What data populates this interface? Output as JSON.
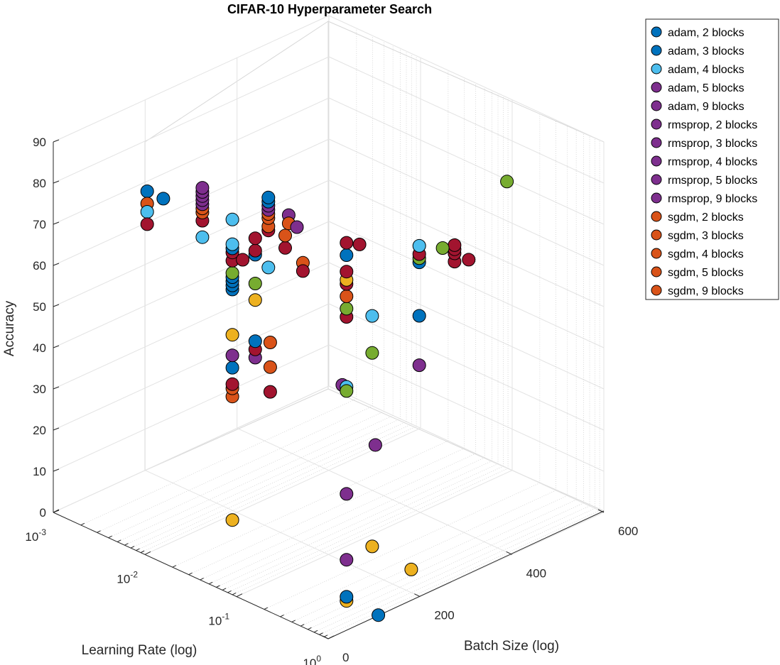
{
  "chart_data": {
    "type": "scatter",
    "title": "CIFAR-10 Hyperparameter Search",
    "xlabel": "Learning Rate (log)",
    "ylabel": "Batch Size (log)",
    "zlabel": "Accuracy",
    "x_scale": "log",
    "x_ticks": [
      {
        "value": 0.001,
        "base": "10",
        "exp": "-3"
      },
      {
        "value": 0.01,
        "base": "10",
        "exp": "-2"
      },
      {
        "value": 0.1,
        "base": "10",
        "exp": "-1"
      },
      {
        "value": 1,
        "base": "10",
        "exp": "0"
      }
    ],
    "y_ticks": [
      {
        "value": 0,
        "label": "0"
      },
      {
        "value": 200,
        "label": "200"
      },
      {
        "value": 400,
        "label": "400"
      },
      {
        "value": 600,
        "label": "600"
      }
    ],
    "z_ticks": [
      {
        "value": 0,
        "label": "0"
      },
      {
        "value": 10,
        "label": "10"
      },
      {
        "value": 20,
        "label": "20"
      },
      {
        "value": 30,
        "label": "30"
      },
      {
        "value": 40,
        "label": "40"
      },
      {
        "value": 50,
        "label": "50"
      },
      {
        "value": 60,
        "label": "60"
      },
      {
        "value": 70,
        "label": "70"
      },
      {
        "value": 80,
        "label": "80"
      },
      {
        "value": 90,
        "label": "90"
      }
    ],
    "xlim": [
      0.001,
      1
    ],
    "ylim": [
      0,
      600
    ],
    "zlim": [
      0,
      90
    ],
    "grid": true,
    "legend_position": "top-right outside",
    "legend": [
      {
        "label": "adam, 2 blocks",
        "color": "#0072BD"
      },
      {
        "label": "adam, 3 blocks",
        "color": "#0072BD"
      },
      {
        "label": "adam, 4 blocks",
        "color": "#4DBEEE"
      },
      {
        "label": "adam, 5 blocks",
        "color": "#7E2F8E"
      },
      {
        "label": "adam, 9 blocks",
        "color": "#7E2F8E"
      },
      {
        "label": "rmsprop, 2 blocks",
        "color": "#7E2F8E"
      },
      {
        "label": "rmsprop, 3 blocks",
        "color": "#7E2F8E"
      },
      {
        "label": "rmsprop, 4 blocks",
        "color": "#7E2F8E"
      },
      {
        "label": "rmsprop, 5 blocks",
        "color": "#7E2F8E"
      },
      {
        "label": "rmsprop, 9 blocks",
        "color": "#7E2F8E"
      },
      {
        "label": "sgdm, 2 blocks",
        "color": "#D95319"
      },
      {
        "label": "sgdm, 3 blocks",
        "color": "#D95319"
      },
      {
        "label": "sgdm, 4 blocks",
        "color": "#D95319"
      },
      {
        "label": "sgdm, 5 blocks",
        "color": "#D95319"
      },
      {
        "label": "sgdm, 9 blocks",
        "color": "#D95319"
      }
    ],
    "points": [
      {
        "x": 0.01,
        "y": 5,
        "z": 88,
        "color": "#0072BD"
      },
      {
        "x": 0.01,
        "y": 5,
        "z": 85,
        "color": "#D95319"
      },
      {
        "x": 0.01,
        "y": 5,
        "z": 83,
        "color": "#4DBEEE"
      },
      {
        "x": 0.01,
        "y": 5,
        "z": 80,
        "color": "#A2142F"
      },
      {
        "x": 0.015,
        "y": 5,
        "z": 88,
        "color": "#0072BD"
      },
      {
        "x": 0.04,
        "y": 5,
        "z": 83,
        "color": "#4DBEEE"
      },
      {
        "x": 0.04,
        "y": 5,
        "z": 87,
        "color": "#A2142F"
      },
      {
        "x": 0.04,
        "y": 5,
        "z": 89,
        "color": "#D95319"
      },
      {
        "x": 0.04,
        "y": 5,
        "z": 90,
        "color": "#D95319"
      },
      {
        "x": 0.04,
        "y": 5,
        "z": 91,
        "color": "#7E2F8E"
      },
      {
        "x": 0.04,
        "y": 5,
        "z": 92,
        "color": "#7E2F8E"
      },
      {
        "x": 0.04,
        "y": 5,
        "z": 93,
        "color": "#7E2F8E"
      },
      {
        "x": 0.04,
        "y": 5,
        "z": 94,
        "color": "#7E2F8E"
      },
      {
        "x": 0.04,
        "y": 5,
        "z": 95,
        "color": "#7E2F8E"
      },
      {
        "x": 0.11,
        "y": 5,
        "z": 82,
        "color": "#A2142F"
      },
      {
        "x": 0.21,
        "y": 5,
        "z": 83,
        "color": "#4DBEEE"
      },
      {
        "x": 0.21,
        "y": 5,
        "z": 92,
        "color": "#A2142F"
      },
      {
        "x": 0.21,
        "y": 5,
        "z": 93,
        "color": "#D95319"
      },
      {
        "x": 0.21,
        "y": 5,
        "z": 95,
        "color": "#D95319"
      },
      {
        "x": 0.21,
        "y": 5,
        "z": 96,
        "color": "#D95319"
      },
      {
        "x": 0.21,
        "y": 5,
        "z": 97,
        "color": "#7E2F8E"
      },
      {
        "x": 0.21,
        "y": 5,
        "z": 98,
        "color": "#7E2F8E"
      },
      {
        "x": 0.21,
        "y": 5,
        "z": 99,
        "color": "#0072BD"
      },
      {
        "x": 0.21,
        "y": 5,
        "z": 100,
        "color": "#0072BD"
      },
      {
        "x": 0.22,
        "y": 5,
        "z": 65,
        "color": "#D95319"
      },
      {
        "x": 0.22,
        "y": 5,
        "z": 59,
        "color": "#D95319"
      },
      {
        "x": 0.22,
        "y": 5,
        "z": 53,
        "color": "#A2142F"
      },
      {
        "x": 0.35,
        "y": 5,
        "z": 98,
        "color": "#7E2F8E"
      },
      {
        "x": 0.35,
        "y": 5,
        "z": 96,
        "color": "#D95319"
      },
      {
        "x": 0.43,
        "y": 5,
        "z": 96,
        "color": "#7E2F8E"
      },
      {
        "x": 0.5,
        "y": 5,
        "z": 88,
        "color": "#D95319"
      },
      {
        "x": 0.5,
        "y": 5,
        "z": 86,
        "color": "#A2142F"
      },
      {
        "x": 0.045,
        "y": 60,
        "z": 12,
        "color": "#EDB120"
      },
      {
        "x": 0.045,
        "y": 60,
        "z": 57,
        "color": "#EDB120"
      },
      {
        "x": 0.045,
        "y": 60,
        "z": 42,
        "color": "#D95319"
      },
      {
        "x": 0.045,
        "y": 60,
        "z": 44,
        "color": "#D95319"
      },
      {
        "x": 0.045,
        "y": 60,
        "z": 45,
        "color": "#A2142F"
      },
      {
        "x": 0.045,
        "y": 60,
        "z": 49,
        "color": "#0072BD"
      },
      {
        "x": 0.045,
        "y": 60,
        "z": 52,
        "color": "#7E2F8E"
      },
      {
        "x": 0.045,
        "y": 60,
        "z": 68,
        "color": "#0072BD"
      },
      {
        "x": 0.045,
        "y": 60,
        "z": 69,
        "color": "#0072BD"
      },
      {
        "x": 0.045,
        "y": 60,
        "z": 70,
        "color": "#0072BD"
      },
      {
        "x": 0.045,
        "y": 60,
        "z": 71,
        "color": "#0072BD"
      },
      {
        "x": 0.045,
        "y": 60,
        "z": 72,
        "color": "#77AC30"
      },
      {
        "x": 0.045,
        "y": 60,
        "z": 75,
        "color": "#A2142F"
      },
      {
        "x": 0.045,
        "y": 60,
        "z": 77,
        "color": "#A2142F"
      },
      {
        "x": 0.045,
        "y": 60,
        "z": 78,
        "color": "#0072BD"
      },
      {
        "x": 0.045,
        "y": 60,
        "z": 79,
        "color": "#4DBEEE"
      },
      {
        "x": 0.045,
        "y": 60,
        "z": 85,
        "color": "#4DBEEE"
      },
      {
        "x": 0.08,
        "y": 60,
        "z": 54,
        "color": "#7E2F8E"
      },
      {
        "x": 0.08,
        "y": 60,
        "z": 56,
        "color": "#A2142F"
      },
      {
        "x": 0.08,
        "y": 60,
        "z": 58,
        "color": "#0072BD"
      },
      {
        "x": 0.08,
        "y": 60,
        "z": 68,
        "color": "#EDB120"
      },
      {
        "x": 0.08,
        "y": 60,
        "z": 72,
        "color": "#77AC30"
      },
      {
        "x": 0.08,
        "y": 60,
        "z": 79,
        "color": "#0072BD"
      },
      {
        "x": 0.08,
        "y": 60,
        "z": 80,
        "color": "#A2142F"
      },
      {
        "x": 0.08,
        "y": 60,
        "z": 83,
        "color": "#A2142F"
      },
      {
        "x": 0.17,
        "y": 60,
        "z": 84,
        "color": "#A2142F"
      },
      {
        "x": 0.17,
        "y": 60,
        "z": 87,
        "color": "#D95319"
      },
      {
        "x": 0.5,
        "y": 100,
        "z": 1,
        "color": "#EDB120"
      },
      {
        "x": 0.5,
        "y": 100,
        "z": 2,
        "color": "#0072BD"
      },
      {
        "x": 0.5,
        "y": 100,
        "z": 11,
        "color": "#7E2F8E"
      },
      {
        "x": 0.5,
        "y": 100,
        "z": 27,
        "color": "#7E2F8E"
      },
      {
        "x": 0.5,
        "y": 100,
        "z": 53,
        "color": "#4DBEEE"
      },
      {
        "x": 0.5,
        "y": 100,
        "z": 52,
        "color": "#77AC30"
      },
      {
        "x": 0.5,
        "y": 100,
        "z": 70,
        "color": "#A2142F"
      },
      {
        "x": 0.5,
        "y": 100,
        "z": 72,
        "color": "#77AC30"
      },
      {
        "x": 0.5,
        "y": 100,
        "z": 75,
        "color": "#D95319"
      },
      {
        "x": 0.5,
        "y": 100,
        "z": 78,
        "color": "#A2142F"
      },
      {
        "x": 0.5,
        "y": 100,
        "z": 79,
        "color": "#EDB120"
      },
      {
        "x": 0.5,
        "y": 100,
        "z": 81,
        "color": "#A2142F"
      },
      {
        "x": 0.5,
        "y": 100,
        "z": 85,
        "color": "#0072BD"
      },
      {
        "x": 0.5,
        "y": 100,
        "z": 88,
        "color": "#A2142F"
      },
      {
        "x": 0.45,
        "y": 100,
        "z": 53,
        "color": "#7E2F8E"
      },
      {
        "x": 0.55,
        "y": 120,
        "z": 87,
        "color": "#A2142F"
      },
      {
        "x": 0.6,
        "y": 140,
        "z": 69,
        "color": "#4DBEEE"
      },
      {
        "x": 0.65,
        "y": 140,
        "z": 38,
        "color": "#7E2F8E"
      },
      {
        "x": 0.6,
        "y": 140,
        "z": 60,
        "color": "#77AC30"
      },
      {
        "x": 0.6,
        "y": 140,
        "z": 13,
        "color": "#EDB120"
      },
      {
        "x": 0.7,
        "y": 140,
        "z": -3,
        "color": "#0072BD"
      },
      {
        "x": 0.45,
        "y": 250,
        "z": 0.5,
        "color": "#EDB120"
      },
      {
        "x": 0.55,
        "y": 250,
        "z": 51,
        "color": "#7E2F8E"
      },
      {
        "x": 0.55,
        "y": 250,
        "z": 63,
        "color": "#0072BD"
      },
      {
        "x": 0.55,
        "y": 250,
        "z": 76,
        "color": "#0072BD"
      },
      {
        "x": 0.55,
        "y": 250,
        "z": 77,
        "color": "#77AC30"
      },
      {
        "x": 0.55,
        "y": 250,
        "z": 78,
        "color": "#A2142F"
      },
      {
        "x": 0.55,
        "y": 250,
        "z": 80,
        "color": "#4DBEEE"
      },
      {
        "x": 0.7,
        "y": 280,
        "z": 79,
        "color": "#77AC30"
      },
      {
        "x": 0.75,
        "y": 300,
        "z": 75,
        "color": "#A2142F"
      },
      {
        "x": 0.75,
        "y": 300,
        "z": 77,
        "color": "#A2142F"
      },
      {
        "x": 0.75,
        "y": 300,
        "z": 78,
        "color": "#A2142F"
      },
      {
        "x": 0.75,
        "y": 300,
        "z": 79,
        "color": "#A2142F"
      },
      {
        "x": 0.85,
        "y": 320,
        "z": 75,
        "color": "#A2142F"
      },
      {
        "x": 0.7,
        "y": 420,
        "z": 88,
        "color": "#77AC30"
      }
    ]
  }
}
